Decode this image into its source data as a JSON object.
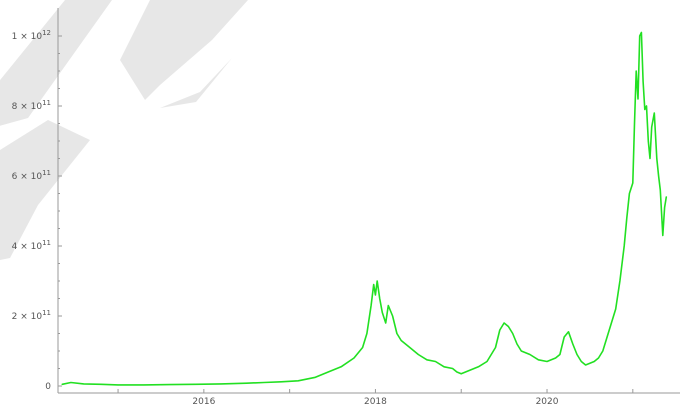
{
  "chart_data": {
    "type": "line",
    "title": "",
    "xlabel": "",
    "ylabel": "",
    "xlim": [
      2014.3,
      2021.55
    ],
    "ylim": [
      -20000000000,
      1080000000000
    ],
    "grid": false,
    "x_ticks": [
      2016,
      2018,
      2020
    ],
    "y_ticks": [
      {
        "value": 0,
        "mantissa": "0",
        "exponent": ""
      },
      {
        "value": 200000000000,
        "mantissa": "2 × 10",
        "exponent": "11"
      },
      {
        "value": 400000000000,
        "mantissa": "4 × 10",
        "exponent": "11"
      },
      {
        "value": 600000000000,
        "mantissa": "6 × 10",
        "exponent": "11"
      },
      {
        "value": 800000000000,
        "mantissa": "8 × 10",
        "exponent": "11"
      },
      {
        "value": 1000000000000,
        "mantissa": "1 × 10",
        "exponent": "12"
      }
    ],
    "series": [
      {
        "color": "#22e022",
        "x": [
          2014.35,
          2014.45,
          2014.6,
          2014.8,
          2015.0,
          2015.3,
          2015.6,
          2015.9,
          2016.2,
          2016.5,
          2016.7,
          2016.9,
          2017.1,
          2017.3,
          2017.45,
          2017.6,
          2017.75,
          2017.85,
          2017.9,
          2017.95,
          2017.98,
          2018.0,
          2018.02,
          2018.05,
          2018.08,
          2018.12,
          2018.15,
          2018.2,
          2018.25,
          2018.3,
          2018.4,
          2018.5,
          2018.6,
          2018.7,
          2018.8,
          2018.9,
          2018.95,
          2019.0,
          2019.1,
          2019.2,
          2019.3,
          2019.4,
          2019.45,
          2019.5,
          2019.55,
          2019.6,
          2019.65,
          2019.7,
          2019.8,
          2019.9,
          2020.0,
          2020.1,
          2020.15,
          2020.2,
          2020.25,
          2020.3,
          2020.35,
          2020.4,
          2020.45,
          2020.5,
          2020.55,
          2020.6,
          2020.65,
          2020.7,
          2020.75,
          2020.8,
          2020.85,
          2020.9,
          2020.93,
          2020.96,
          2021.0,
          2021.02,
          2021.04,
          2021.06,
          2021.08,
          2021.1,
          2021.12,
          2021.14,
          2021.16,
          2021.18,
          2021.2,
          2021.22,
          2021.25,
          2021.28,
          2021.3,
          2021.32,
          2021.35,
          2021.37,
          2021.39
        ],
        "y": [
          5000000000,
          10000000000,
          6000000000,
          5000000000,
          3000000000,
          3000000000,
          4000000000,
          5000000000,
          6000000000,
          8000000000,
          10000000000,
          12000000000,
          15000000000,
          25000000000,
          40000000000,
          55000000000,
          80000000000,
          110000000000,
          150000000000,
          230000000000,
          290000000000,
          260000000000,
          300000000000,
          250000000000,
          210000000000,
          180000000000,
          230000000000,
          200000000000,
          150000000000,
          130000000000,
          110000000000,
          90000000000,
          75000000000,
          70000000000,
          55000000000,
          50000000000,
          40000000000,
          35000000000,
          45000000000,
          55000000000,
          70000000000,
          110000000000,
          160000000000,
          180000000000,
          170000000000,
          150000000000,
          120000000000,
          100000000000,
          90000000000,
          75000000000,
          70000000000,
          80000000000,
          90000000000,
          140000000000,
          155000000000,
          120000000000,
          90000000000,
          70000000000,
          60000000000,
          65000000000,
          70000000000,
          80000000000,
          100000000000,
          140000000000,
          180000000000,
          220000000000,
          300000000000,
          400000000000,
          480000000000,
          550000000000,
          580000000000,
          750000000000,
          900000000000,
          820000000000,
          1000000000000,
          1010000000000,
          870000000000,
          790000000000,
          800000000000,
          700000000000,
          650000000000,
          740000000000,
          780000000000,
          650000000000,
          600000000000,
          560000000000,
          430000000000,
          510000000000,
          540000000000
        ]
      }
    ]
  }
}
